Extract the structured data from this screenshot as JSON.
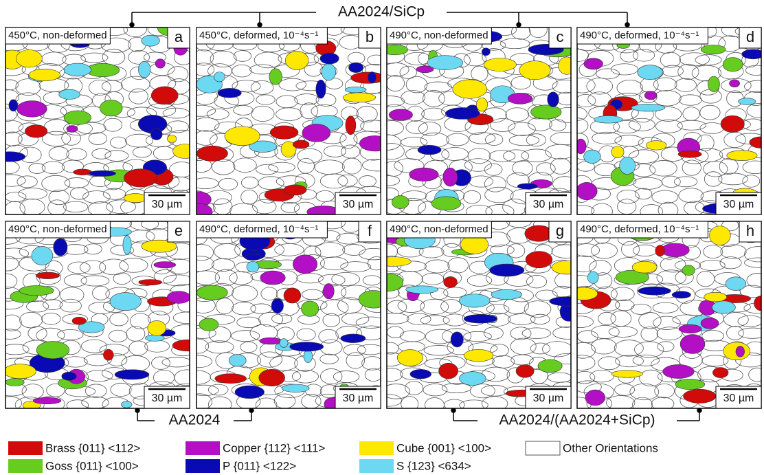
{
  "header": {
    "top_group": "AA2024/SiCp",
    "bottom_left_group": "AA2024",
    "bottom_right_group": "AA2024/(AA2024+SiCp)"
  },
  "panels": [
    {
      "caption": "450°C, non-deformed",
      "letter": "a",
      "scale": "30 µm"
    },
    {
      "caption": "450°C, deformed, 10⁻⁴s⁻¹",
      "letter": "b",
      "scale": "30 µm"
    },
    {
      "caption": "490°C, non-deformed",
      "letter": "c",
      "scale": "30 µm"
    },
    {
      "caption": "490°C, deformed, 10⁻⁴s⁻¹",
      "letter": "d",
      "scale": "30 µm"
    },
    {
      "caption": "490°C, non-deformed",
      "letter": "e",
      "scale": "30 µm"
    },
    {
      "caption": "490°C, deformed, 10⁻⁴s⁻¹",
      "letter": "f",
      "scale": "30 µm"
    },
    {
      "caption": "490°C, non-deformed",
      "letter": "g",
      "scale": "30 µm"
    },
    {
      "caption": "490°C, deformed, 10⁻⁴s⁻¹",
      "letter": "h",
      "scale": "30 µm"
    }
  ],
  "legend": [
    {
      "label": "Brass {011} <112>",
      "color": "#d10a0a"
    },
    {
      "label": "Copper {112} <111>",
      "color": "#b30fc4"
    },
    {
      "label": "Cube {001} <100>",
      "color": "#ffe800"
    },
    {
      "label": "Other Orientations",
      "color": "#ffffff"
    },
    {
      "label": "Goss {011} <100>",
      "color": "#66cc1f"
    },
    {
      "label": "P {011} <122>",
      "color": "#0a0ab4"
    },
    {
      "label": "S {123} <634>",
      "color": "#6dd8f2"
    }
  ]
}
